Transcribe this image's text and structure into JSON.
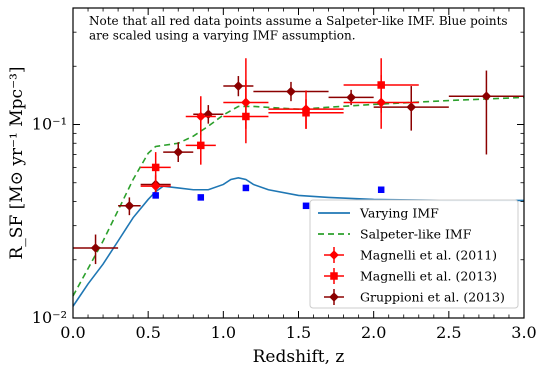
{
  "chart_data": {
    "type": "scatter",
    "xlabel": "Redshift, z",
    "ylabel": "R_SF [M⊙ yr⁻¹ Mpc⁻³]",
    "xlim": [
      0.0,
      3.0
    ],
    "ylim": [
      0.01,
      0.4
    ],
    "yscale": "log",
    "x_ticks": [
      0.0,
      0.5,
      1.0,
      1.5,
      2.0,
      2.5,
      3.0
    ],
    "x_tick_labels": [
      "0.0",
      "0.5",
      "1.0",
      "1.5",
      "2.0",
      "2.5",
      "3.0"
    ],
    "y_ticks": [
      0.01,
      0.1
    ],
    "y_tick_labels": [
      "10⁻²",
      "10⁻¹"
    ],
    "grid": false,
    "legend_position": "lower-right",
    "annotation": [
      "Note that all red data points assume a Salpeter-like IMF. Blue points",
      "are scaled using a varying IMF assumption."
    ],
    "legend": [
      {
        "label": "Varying IMF",
        "kind": "solid-line",
        "color": "#1f77b4"
      },
      {
        "label": "Salpeter-like IMF",
        "kind": "dashed-line",
        "color": "#2ca02c"
      },
      {
        "label": "Magnelli et al. (2011)",
        "kind": "diamond",
        "color": "#ff0000"
      },
      {
        "label": "Magnelli et al. (2013)",
        "kind": "square",
        "color": "#ff0000"
      },
      {
        "label": "Gruppioni et al. (2013)",
        "kind": "diamond",
        "color": "#8b0000"
      }
    ],
    "series": [
      {
        "name": "Varying IMF",
        "kind": "line",
        "color": "#1f77b4",
        "x": [
          0.0,
          0.1,
          0.2,
          0.3,
          0.4,
          0.5,
          0.55,
          0.6,
          0.7,
          0.8,
          0.9,
          1.0,
          1.05,
          1.1,
          1.15,
          1.2,
          1.3,
          1.5,
          1.7,
          2.0,
          2.5,
          3.0
        ],
        "y": [
          0.0115,
          0.015,
          0.019,
          0.025,
          0.033,
          0.041,
          0.045,
          0.048,
          0.047,
          0.046,
          0.046,
          0.049,
          0.052,
          0.053,
          0.052,
          0.049,
          0.046,
          0.043,
          0.042,
          0.041,
          0.0405,
          0.0405
        ]
      },
      {
        "name": "Salpeter-like IMF",
        "kind": "dashed",
        "color": "#2ca02c",
        "x": [
          0.0,
          0.1,
          0.2,
          0.3,
          0.4,
          0.5,
          0.55,
          0.6,
          0.7,
          0.8,
          0.9,
          1.0,
          1.1,
          1.2,
          1.5,
          2.0,
          2.5,
          3.0
        ],
        "y": [
          0.013,
          0.018,
          0.025,
          0.036,
          0.052,
          0.071,
          0.077,
          0.078,
          0.08,
          0.087,
          0.098,
          0.112,
          0.124,
          0.124,
          0.12,
          0.127,
          0.133,
          0.138
        ]
      },
      {
        "name": "blue-points",
        "kind": "square",
        "color": "#0000ff",
        "points": [
          {
            "x": 0.55,
            "y": 0.043
          },
          {
            "x": 0.85,
            "y": 0.042
          },
          {
            "x": 1.15,
            "y": 0.047
          },
          {
            "x": 1.55,
            "y": 0.038
          },
          {
            "x": 2.05,
            "y": 0.046
          }
        ]
      },
      {
        "name": "Magnelli et al. (2011)",
        "kind": "diamond",
        "color": "#ff0000",
        "points": [
          {
            "x": 0.55,
            "y": 0.048,
            "xerr": [
              0.1,
              0.1
            ],
            "yerr": [
              0.006,
              0.006
            ]
          },
          {
            "x": 0.85,
            "y": 0.11,
            "xerr": [
              0.1,
              0.1
            ],
            "yerr": [
              0.022,
              0.03
            ]
          },
          {
            "x": 1.15,
            "y": 0.13,
            "xerr": [
              0.15,
              0.15
            ],
            "yerr": [
              0.035,
              0.09
            ]
          },
          {
            "x": 1.55,
            "y": 0.12,
            "xerr": [
              0.25,
              0.25
            ],
            "yerr": [
              0.025,
              0.03
            ]
          },
          {
            "x": 2.05,
            "y": 0.13,
            "xerr": [
              0.25,
              0.25
            ],
            "yerr": [
              0.035,
              0.05
            ]
          }
        ]
      },
      {
        "name": "Magnelli et al. (2013)",
        "kind": "square",
        "color": "#ff0000",
        "points": [
          {
            "x": 0.55,
            "y": 0.06,
            "xerr": [
              0.1,
              0.1
            ],
            "yerr": [
              0.01,
              0.012
            ]
          },
          {
            "x": 0.85,
            "y": 0.078,
            "xerr": [
              0.1,
              0.1
            ],
            "yerr": [
              0.016,
              0.032
            ]
          },
          {
            "x": 1.15,
            "y": 0.11,
            "xerr": [
              0.15,
              0.15
            ],
            "yerr": [
              0.03,
              0.06
            ]
          },
          {
            "x": 1.55,
            "y": 0.115,
            "xerr": [
              0.25,
              0.25
            ],
            "yerr": [
              0.02,
              0.02
            ]
          },
          {
            "x": 2.05,
            "y": 0.16,
            "xerr": [
              0.25,
              0.25
            ],
            "yerr": [
              0.045,
              0.06
            ]
          }
        ]
      },
      {
        "name": "Gruppioni et al. (2013)",
        "kind": "diamond",
        "color": "#8b0000",
        "points": [
          {
            "x": 0.15,
            "y": 0.023,
            "xerr": [
              0.15,
              0.15
            ],
            "yerr": [
              0.004,
              0.004
            ]
          },
          {
            "x": 0.375,
            "y": 0.038,
            "xerr": [
              0.075,
              0.075
            ],
            "yerr": [
              0.004,
              0.004
            ]
          },
          {
            "x": 0.55,
            "y": 0.049,
            "xerr": [
              0.1,
              0.1
            ],
            "yerr": [
              0.005,
              0.006
            ]
          },
          {
            "x": 0.7,
            "y": 0.072,
            "xerr": [
              0.1,
              0.1
            ],
            "yerr": [
              0.008,
              0.009
            ]
          },
          {
            "x": 0.9,
            "y": 0.113,
            "xerr": [
              0.1,
              0.1
            ],
            "yerr": [
              0.012,
              0.013
            ]
          },
          {
            "x": 1.1,
            "y": 0.158,
            "xerr": [
              0.1,
              0.1
            ],
            "yerr": [
              0.018,
              0.02
            ]
          },
          {
            "x": 1.45,
            "y": 0.148,
            "xerr": [
              0.25,
              0.25
            ],
            "yerr": [
              0.016,
              0.018
            ]
          },
          {
            "x": 1.85,
            "y": 0.138,
            "xerr": [
              0.15,
              0.15
            ],
            "yerr": [
              0.012,
              0.013
            ]
          },
          {
            "x": 2.25,
            "y": 0.123,
            "xerr": [
              0.25,
              0.25
            ],
            "yerr": [
              0.03,
              0.035
            ]
          },
          {
            "x": 2.75,
            "y": 0.14,
            "xerr": [
              0.25,
              0.25
            ],
            "yerr": [
              0.07,
              0.05
            ]
          }
        ]
      }
    ]
  }
}
